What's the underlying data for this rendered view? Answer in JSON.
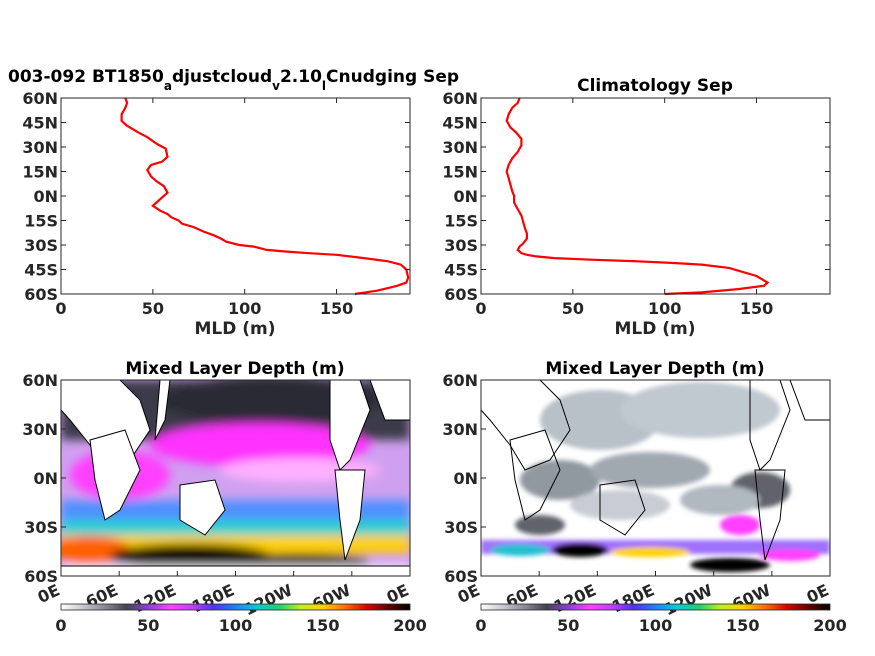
{
  "chart_data": [
    {
      "type": "line",
      "title_parts": [
        "003-092 BT1850",
        "a",
        "djustcloud",
        "v",
        "2.10",
        "l",
        "Cnudging Sep"
      ],
      "xlabel": "MLD (m)",
      "xlim": [
        0,
        190
      ],
      "ylim": [
        -60,
        60
      ],
      "xticks": [
        "0",
        "50",
        "100",
        "150"
      ],
      "yticks": [
        "60N",
        "45N",
        "30N",
        "15N",
        "0N",
        "15S",
        "30S",
        "45S",
        "60S"
      ],
      "series": [
        {
          "color": "#ff0000",
          "x": [
            35,
            36,
            35,
            33,
            33,
            36,
            42,
            47,
            52,
            57,
            58,
            55,
            49,
            47,
            49,
            52,
            56,
            58,
            55,
            52,
            50,
            54,
            58,
            60,
            64,
            66,
            72,
            78,
            83,
            87,
            90,
            97,
            105,
            112,
            122,
            135,
            150,
            165,
            178,
            185,
            188,
            189,
            188,
            183,
            172,
            160
          ],
          "y": [
            60,
            57,
            54,
            50,
            46,
            43,
            39,
            36,
            32,
            29,
            24,
            21,
            19,
            16,
            12,
            9,
            6,
            2,
            -1,
            -4,
            -6,
            -9,
            -11,
            -13,
            -15,
            -17,
            -19,
            -22,
            -24,
            -26,
            -28,
            -30,
            -31,
            -33,
            -34,
            -35,
            -36,
            -38,
            -40,
            -42,
            -45,
            -50,
            -53,
            -55,
            -58,
            -60
          ]
        }
      ]
    },
    {
      "type": "line",
      "title": "Climatology Sep",
      "xlabel": "MLD (m)",
      "xlim": [
        0,
        190
      ],
      "ylim": [
        -60,
        60
      ],
      "xticks": [
        "0",
        "50",
        "100",
        "150"
      ],
      "yticks": [
        "60N",
        "45N",
        "30N",
        "15N",
        "0N",
        "15S",
        "30S",
        "45S",
        "60S"
      ],
      "series": [
        {
          "color": "#ff0000",
          "x": [
            21,
            20,
            17,
            15,
            14,
            16,
            19,
            22,
            22,
            20,
            17,
            15,
            14,
            15,
            16,
            17,
            18,
            18,
            20,
            22,
            23,
            24,
            25,
            25,
            23,
            21,
            20,
            22,
            25,
            30,
            40,
            60,
            85,
            105,
            120,
            135,
            150,
            156,
            154,
            140,
            120,
            100
          ],
          "y": [
            60,
            57,
            54,
            50,
            46,
            42,
            39,
            35,
            31,
            27,
            23,
            19,
            15,
            11,
            7,
            3,
            0,
            -4,
            -8,
            -12,
            -16,
            -20,
            -23,
            -26,
            -29,
            -31,
            -33,
            -35,
            -36,
            -37,
            -38,
            -39,
            -40,
            -41,
            -42,
            -44,
            -49,
            -53,
            -55,
            -57,
            -59,
            -60
          ]
        }
      ]
    },
    {
      "type": "heatmap",
      "title": "Mixed Layer Depth (m)",
      "yticks": [
        "60N",
        "30N",
        "0N",
        "30S",
        "60S"
      ],
      "xticks": [
        "0E",
        "60E",
        "120E",
        "180E",
        "120W",
        "60W",
        "0E"
      ],
      "colorbar": {
        "ticks": [
          "0",
          "50",
          "100",
          "150",
          "200"
        ],
        "range": [
          0,
          200
        ],
        "colors": [
          "#ffffff",
          "#c8c8d0",
          "#8a8a95",
          "#444450",
          "#8a40d8",
          "#ff40ff",
          "#c040ff",
          "#5030ff",
          "#2080ff",
          "#00d0d0",
          "#20d070",
          "#c0f020",
          "#ffd000",
          "#ff7000",
          "#e00000",
          "#600000",
          "#000000"
        ]
      }
    },
    {
      "type": "heatmap",
      "title": "Mixed Layer Depth (m)",
      "yticks": [
        "60N",
        "30N",
        "0N",
        "30S",
        "60S"
      ],
      "xticks": [
        "0E",
        "60E",
        "120E",
        "180E",
        "120W",
        "60W",
        "0E"
      ],
      "colorbar": {
        "ticks": [
          "0",
          "50",
          "100",
          "150",
          "200"
        ],
        "range": [
          0,
          200
        ],
        "colors": [
          "#ffffff",
          "#c8c8d0",
          "#8a8a95",
          "#444450",
          "#8a40d8",
          "#ff40ff",
          "#c040ff",
          "#5030ff",
          "#2080ff",
          "#00d0d0",
          "#20d070",
          "#c0f020",
          "#ffd000",
          "#ff7000",
          "#e00000",
          "#600000",
          "#000000"
        ]
      }
    }
  ]
}
